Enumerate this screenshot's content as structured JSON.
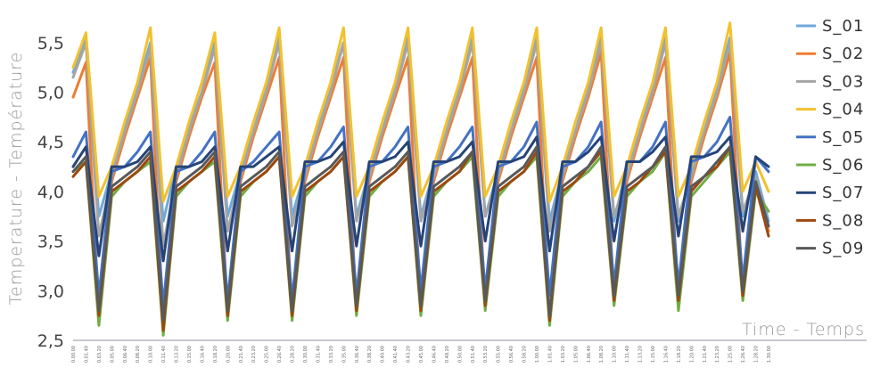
{
  "chart_data": {
    "type": "line",
    "xlabel": "Time - Temps",
    "ylabel": "Temperature - Température",
    "ylim": [
      2.5,
      5.75
    ],
    "yticks": [
      "2,5",
      "3,0",
      "3,5",
      "4,0",
      "4,5",
      "5,0",
      "5,5"
    ],
    "grid": false,
    "legend": "right",
    "x": [
      "0.00.00",
      "0.01.40",
      "0.03.20",
      "0.05.00",
      "0.06.40",
      "0.08.20",
      "0.10.00",
      "0.11.40",
      "0.13.20",
      "0.15.00",
      "0.16.40",
      "0.18.20",
      "0.20.00",
      "0.21.40",
      "0.23.20",
      "0.25.00",
      "0.26.40",
      "0.28.20",
      "0.30.00",
      "0.31.40",
      "0.33.20",
      "0.35.00",
      "0.36.40",
      "0.38.20",
      "0.40.00",
      "0.41.40",
      "0.43.20",
      "0.45.00",
      "0.46.40",
      "0.48.20",
      "0.50.00",
      "0.51.40",
      "0.53.20",
      "0.55.00",
      "0.56.40",
      "0.58.20",
      "1.00.00",
      "1.01.40",
      "1.03.20",
      "1.05.00",
      "1.06.40",
      "1.08.20",
      "1.10.00",
      "1.11.40",
      "1.13.20",
      "1.15.00",
      "1.16.40",
      "1.18.20",
      "1.20.00",
      "1.21.40",
      "1.23.20",
      "1.25.00",
      "1.26.40",
      "1.28.20",
      "1.30.00"
    ],
    "series": [
      {
        "name": "S_01",
        "color": "#6fa8dc",
        "values": [
          5.2,
          5.55,
          3.75,
          4.2,
          4.65,
          5.05,
          5.5,
          3.7,
          4.25,
          4.65,
          5.0,
          5.5,
          3.75,
          4.2,
          4.6,
          5.05,
          5.55,
          3.75,
          4.2,
          4.65,
          5.05,
          5.5,
          3.75,
          4.2,
          4.6,
          5.05,
          5.55,
          3.75,
          4.2,
          4.6,
          5.05,
          5.55,
          3.75,
          4.2,
          4.6,
          5.05,
          5.55,
          3.7,
          4.2,
          4.6,
          5.05,
          5.55,
          3.7,
          4.25,
          4.6,
          5.05,
          5.55,
          3.7,
          4.2,
          4.6,
          5.05,
          5.55,
          3.75,
          4.2,
          3.7
        ]
      },
      {
        "name": "S_02",
        "color": "#ed7d31",
        "values": [
          4.95,
          5.3,
          2.75,
          4.1,
          4.55,
          4.95,
          5.35,
          2.65,
          4.1,
          4.55,
          4.95,
          5.3,
          2.75,
          4.1,
          4.55,
          4.95,
          5.35,
          2.75,
          4.1,
          4.55,
          4.95,
          5.35,
          2.8,
          4.1,
          4.55,
          4.95,
          5.35,
          2.8,
          4.1,
          4.55,
          4.95,
          5.35,
          2.85,
          4.1,
          4.55,
          4.95,
          5.35,
          2.7,
          4.1,
          4.55,
          4.95,
          5.4,
          2.9,
          4.1,
          4.55,
          4.95,
          5.35,
          2.85,
          4.1,
          4.55,
          4.95,
          5.4,
          2.95,
          4.1,
          3.6
        ]
      },
      {
        "name": "S_03",
        "color": "#a5a5a5",
        "values": [
          5.15,
          5.5,
          3.55,
          4.15,
          4.6,
          5.0,
          5.45,
          3.45,
          4.15,
          4.6,
          5.0,
          5.45,
          3.6,
          4.15,
          4.6,
          5.0,
          5.5,
          3.65,
          4.15,
          4.6,
          5.0,
          5.5,
          3.7,
          4.15,
          4.6,
          5.0,
          5.5,
          3.7,
          4.15,
          4.6,
          5.0,
          5.5,
          3.75,
          4.15,
          4.6,
          5.0,
          5.5,
          3.6,
          4.15,
          4.6,
          5.0,
          5.5,
          3.75,
          4.15,
          4.6,
          5.0,
          5.5,
          3.75,
          4.15,
          4.6,
          5.0,
          5.5,
          3.8,
          4.15,
          3.65
        ]
      },
      {
        "name": "S_04",
        "color": "#f2c12e",
        "values": [
          5.25,
          5.6,
          3.95,
          4.25,
          4.7,
          5.1,
          5.65,
          3.9,
          4.25,
          4.7,
          5.1,
          5.6,
          3.95,
          4.25,
          4.7,
          5.1,
          5.65,
          3.95,
          4.25,
          4.7,
          5.1,
          5.65,
          3.95,
          4.25,
          4.7,
          5.1,
          5.65,
          3.95,
          4.25,
          4.7,
          5.1,
          5.65,
          3.95,
          4.25,
          4.7,
          5.1,
          5.65,
          3.9,
          4.25,
          4.7,
          5.1,
          5.65,
          3.95,
          4.25,
          4.7,
          5.1,
          5.65,
          3.95,
          4.25,
          4.7,
          5.1,
          5.7,
          4.0,
          4.3,
          4.0
        ]
      },
      {
        "name": "S_05",
        "color": "#4472c4",
        "values": [
          4.35,
          4.6,
          2.95,
          4.2,
          4.25,
          4.4,
          4.6,
          2.85,
          4.2,
          4.25,
          4.4,
          4.6,
          2.9,
          4.2,
          4.3,
          4.45,
          4.6,
          2.9,
          4.25,
          4.3,
          4.45,
          4.65,
          2.95,
          4.25,
          4.3,
          4.45,
          4.65,
          3.0,
          4.25,
          4.3,
          4.45,
          4.65,
          3.0,
          4.25,
          4.3,
          4.45,
          4.7,
          2.95,
          4.25,
          4.3,
          4.45,
          4.7,
          3.05,
          4.3,
          4.3,
          4.45,
          4.7,
          3.05,
          4.3,
          4.35,
          4.5,
          4.75,
          3.1,
          4.35,
          4.2
        ]
      },
      {
        "name": "S_06",
        "color": "#70ad47",
        "values": [
          4.2,
          4.3,
          2.65,
          3.95,
          4.1,
          4.2,
          4.3,
          2.55,
          3.95,
          4.1,
          4.2,
          4.3,
          2.7,
          3.95,
          4.1,
          4.2,
          4.35,
          2.7,
          3.95,
          4.1,
          4.2,
          4.35,
          2.75,
          3.95,
          4.1,
          4.2,
          4.35,
          2.75,
          3.95,
          4.1,
          4.2,
          4.35,
          2.8,
          3.95,
          4.1,
          4.2,
          4.35,
          2.65,
          3.95,
          4.1,
          4.2,
          4.35,
          2.85,
          3.95,
          4.1,
          4.2,
          4.4,
          2.8,
          3.95,
          4.1,
          4.25,
          4.4,
          2.9,
          4.0,
          3.8
        ]
      },
      {
        "name": "S_07",
        "color": "#264478",
        "values": [
          4.25,
          4.45,
          3.35,
          4.25,
          4.25,
          4.3,
          4.45,
          3.3,
          4.25,
          4.25,
          4.3,
          4.45,
          3.4,
          4.25,
          4.25,
          4.35,
          4.45,
          3.4,
          4.3,
          4.3,
          4.35,
          4.5,
          3.45,
          4.3,
          4.3,
          4.35,
          4.5,
          3.45,
          4.3,
          4.3,
          4.35,
          4.5,
          3.5,
          4.3,
          4.3,
          4.35,
          4.55,
          3.4,
          4.3,
          4.3,
          4.4,
          4.55,
          3.5,
          4.3,
          4.3,
          4.4,
          4.55,
          3.55,
          4.35,
          4.35,
          4.4,
          4.55,
          3.6,
          4.35,
          4.25
        ]
      },
      {
        "name": "S_08",
        "color": "#9e480e",
        "values": [
          4.15,
          4.3,
          2.75,
          4.0,
          4.1,
          4.2,
          4.35,
          2.6,
          4.0,
          4.1,
          4.2,
          4.35,
          2.75,
          4.0,
          4.1,
          4.2,
          4.35,
          2.75,
          4.0,
          4.1,
          4.2,
          4.35,
          2.8,
          4.0,
          4.1,
          4.2,
          4.35,
          2.8,
          4.0,
          4.1,
          4.2,
          4.4,
          2.85,
          4.0,
          4.1,
          4.2,
          4.4,
          2.7,
          4.0,
          4.1,
          4.25,
          4.4,
          2.9,
          4.0,
          4.1,
          4.25,
          4.4,
          2.9,
          4.0,
          4.15,
          4.25,
          4.45,
          2.95,
          4.05,
          3.55
        ]
      },
      {
        "name": "S_09",
        "color": "#595959",
        "values": [
          4.2,
          4.35,
          2.8,
          4.05,
          4.15,
          4.25,
          4.4,
          2.7,
          4.05,
          4.15,
          4.25,
          4.4,
          2.8,
          4.05,
          4.15,
          4.25,
          4.4,
          2.8,
          4.05,
          4.15,
          4.25,
          4.4,
          2.85,
          4.05,
          4.15,
          4.25,
          4.4,
          2.85,
          4.05,
          4.15,
          4.25,
          4.4,
          2.9,
          4.05,
          4.15,
          4.25,
          4.45,
          2.75,
          4.05,
          4.15,
          4.25,
          4.45,
          2.95,
          4.05,
          4.15,
          4.25,
          4.45,
          2.95,
          4.05,
          4.15,
          4.3,
          4.45,
          3.0,
          4.1,
          3.65
        ]
      }
    ]
  }
}
